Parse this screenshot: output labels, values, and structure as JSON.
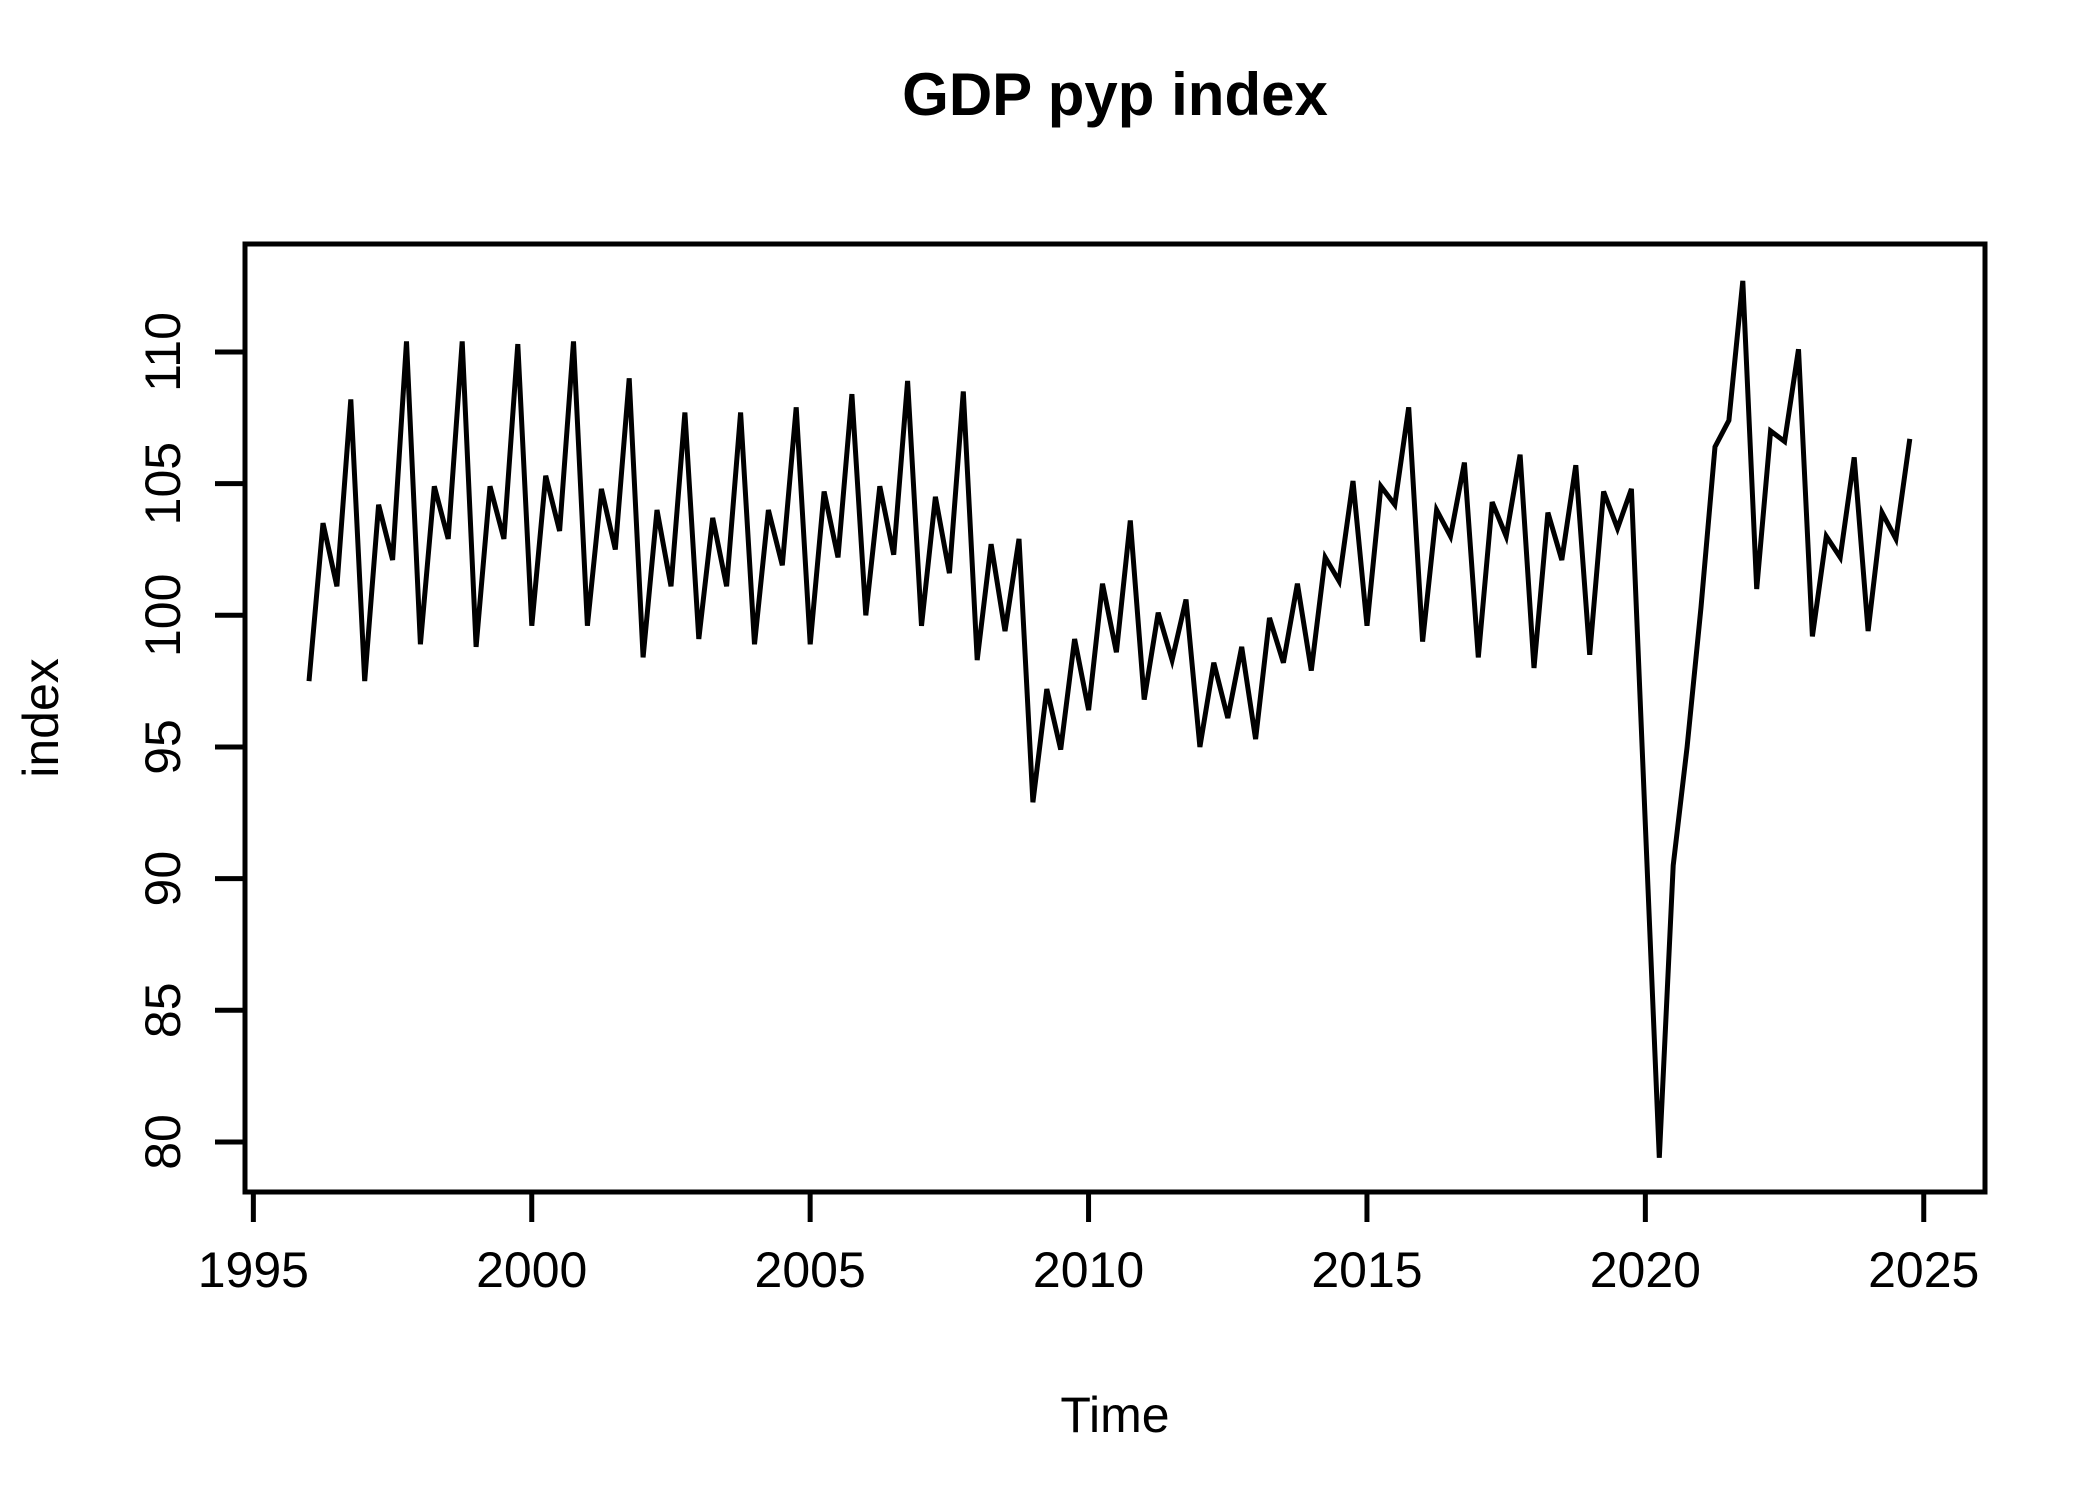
{
  "title": "GDP pyp index",
  "chart_data": {
    "type": "line",
    "title": "GDP pyp index",
    "xlabel": "Time",
    "ylabel": "index",
    "frequency": "quarterly",
    "x_start": 1996.0,
    "x_step": 0.25,
    "x_end": 2024.75,
    "x_ticks": [
      1995,
      2000,
      2005,
      2010,
      2015,
      2020,
      2025
    ],
    "y_ticks": [
      80,
      85,
      90,
      95,
      100,
      105,
      110
    ],
    "xlim": [
      1994.85,
      2026.1
    ],
    "ylim": [
      78.1,
      114.1
    ],
    "grid": false,
    "legend_position": "none",
    "line_color": "#000000",
    "background_color": "#ffffff",
    "series": [
      {
        "name": "GDP pyp index",
        "values": [
          97.5,
          103.5,
          101.1,
          108.2,
          97.5,
          104.2,
          102.1,
          110.4,
          98.9,
          104.9,
          102.9,
          110.4,
          98.8,
          104.9,
          102.9,
          110.3,
          99.6,
          105.3,
          103.2,
          110.4,
          99.6,
          104.8,
          102.5,
          109.0,
          98.4,
          104.0,
          101.1,
          107.7,
          99.1,
          103.7,
          101.1,
          107.7,
          98.9,
          104.0,
          101.9,
          107.9,
          98.9,
          104.7,
          102.2,
          108.4,
          100.0,
          104.9,
          102.3,
          108.9,
          99.6,
          104.5,
          101.6,
          108.5,
          98.3,
          102.7,
          99.4,
          102.9,
          92.9,
          97.2,
          94.9,
          99.1,
          96.4,
          101.2,
          98.6,
          103.6,
          96.8,
          100.1,
          98.3,
          100.6,
          95.0,
          98.2,
          96.1,
          98.8,
          95.3,
          99.9,
          98.2,
          101.2,
          97.9,
          102.2,
          101.3,
          105.1,
          99.6,
          104.9,
          104.2,
          107.9,
          99.0,
          104.0,
          103.0,
          105.8,
          98.4,
          104.3,
          103.0,
          106.1,
          98.0,
          103.9,
          102.1,
          105.7,
          98.5,
          104.7,
          103.3,
          104.8,
          92.0,
          79.4,
          90.5,
          95.0,
          100.3,
          106.4,
          107.4,
          112.7,
          101.0,
          107.0,
          106.6,
          110.1,
          99.2,
          103.0,
          102.2,
          106.0,
          99.4,
          103.9,
          102.9,
          106.7
        ]
      }
    ]
  }
}
